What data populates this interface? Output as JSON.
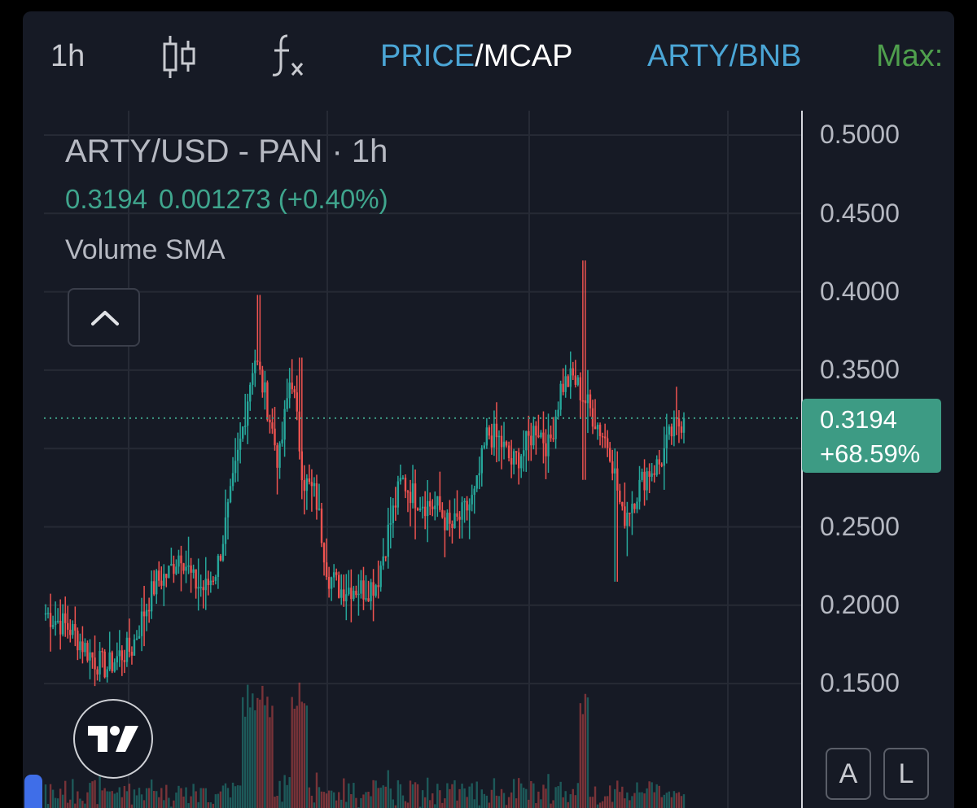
{
  "toolbar": {
    "interval": "1h",
    "candle_icon": "candlestick-icon",
    "indicator_icon": "fx-icon",
    "price_label": "PRICE",
    "separator": "/",
    "mcap_label": "MCAP",
    "pair_label": "ARTY/BNB",
    "max_label": "Max:"
  },
  "legend": {
    "title": "ARTY/USD - PAN · 1h",
    "close": "0.3194",
    "change": "0.001273 (+0.40%)",
    "indicator": "Volume SMA"
  },
  "price_axis": {
    "ticks": [
      "0.5000",
      "0.4500",
      "0.4000",
      "0.3500",
      "0.2500",
      "0.2000",
      "0.1500"
    ],
    "last_price": "0.3194",
    "last_change": "+68.59%"
  },
  "buttons": {
    "auto": "A",
    "log": "L"
  },
  "colors": {
    "up": "#26a69a",
    "down": "#ef5350",
    "background": "#161a25",
    "accent_blue": "#4ba6d6",
    "accent_green": "#4f9f4d",
    "last_label": "#3d9b84"
  },
  "chart_data": {
    "type": "candlestick",
    "interval": "1h",
    "ylim": [
      0.1,
      0.52
    ],
    "yticks": [
      0.15,
      0.2,
      0.25,
      0.35,
      0.4,
      0.45,
      0.5
    ],
    "last_price": 0.3194,
    "series": [
      {
        "name": "ARTY/USD",
        "close_path": [
          0.195,
          0.19,
          0.185,
          0.175,
          0.165,
          0.16,
          0.168,
          0.172,
          0.195,
          0.215,
          0.22,
          0.235,
          0.215,
          0.21,
          0.225,
          0.265,
          0.31,
          0.36,
          0.33,
          0.29,
          0.35,
          0.28,
          0.27,
          0.22,
          0.21,
          0.212,
          0.21,
          0.215,
          0.25,
          0.28,
          0.27,
          0.265,
          0.262,
          0.248,
          0.258,
          0.27,
          0.31,
          0.305,
          0.29,
          0.3,
          0.315,
          0.3,
          0.34,
          0.345,
          0.33,
          0.315,
          0.3,
          0.255,
          0.27,
          0.285,
          0.29,
          0.31,
          0.3194
        ],
        "high": 0.42,
        "low": 0.157
      }
    ],
    "volume": "Volume SMA"
  }
}
